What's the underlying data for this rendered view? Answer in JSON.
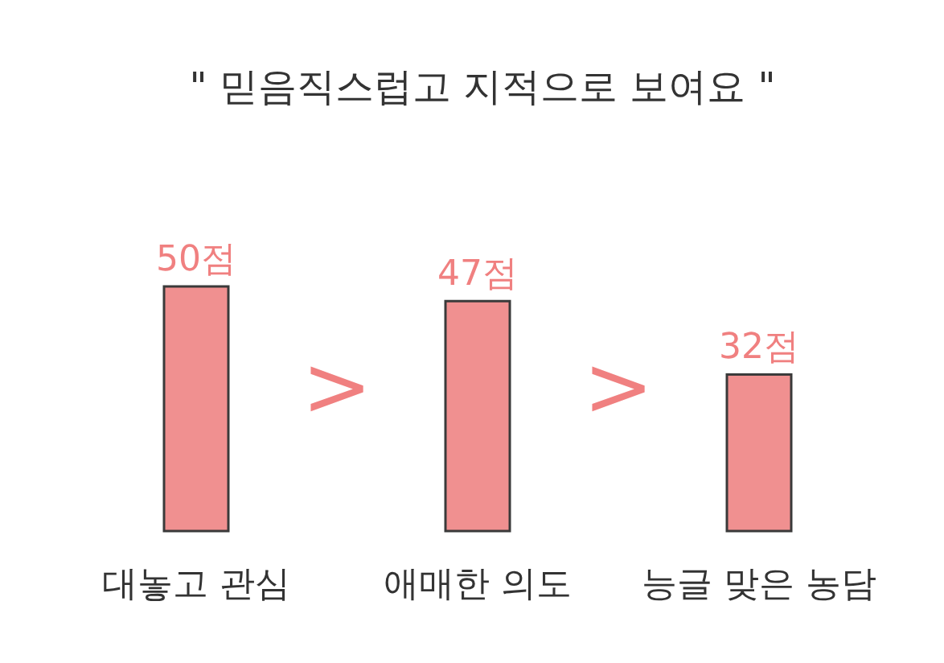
{
  "chart_data": {
    "type": "bar",
    "title": "\" 믿음직스럽고 지적으로 보여요 \"",
    "categories": [
      "대놓고 관심",
      "애매한 의도",
      "능글 맞은 농담"
    ],
    "values": [
      50,
      47,
      32
    ],
    "value_labels": [
      "50점",
      "47점",
      "32점"
    ],
    "color": "#f09090",
    "annotations": [
      ">",
      ">"
    ],
    "relative": false
  }
}
